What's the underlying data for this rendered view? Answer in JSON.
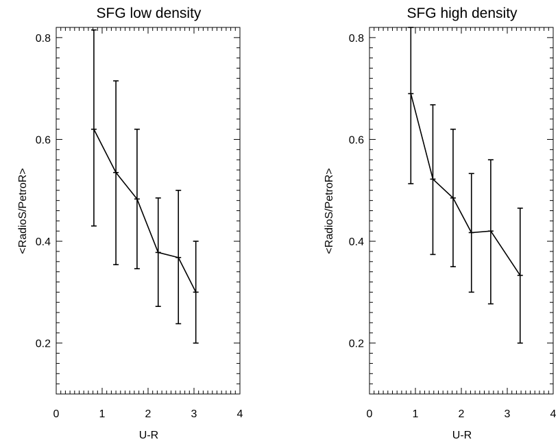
{
  "chart_data": [
    {
      "type": "line",
      "title": "SFG low density",
      "xlabel": "U-R",
      "ylabel": "<RadioS/PetroR>",
      "xlim": [
        0,
        4
      ],
      "ylim": [
        0.1,
        0.82
      ],
      "xticks": [
        "0",
        "1",
        "2",
        "3",
        "4"
      ],
      "yticks": [
        "0.2",
        "0.4",
        "0.6",
        "0.8"
      ],
      "error_bars": true,
      "series": [
        {
          "x": [
            0.82,
            1.3,
            1.76,
            2.22,
            2.66,
            3.04
          ],
          "y": [
            0.62,
            0.535,
            0.483,
            0.378,
            0.368,
            0.3
          ],
          "y_low": [
            0.43,
            0.354,
            0.346,
            0.272,
            0.238,
            0.2
          ],
          "y_high": [
            0.815,
            0.715,
            0.62,
            0.485,
            0.5,
            0.4
          ]
        }
      ]
    },
    {
      "type": "line",
      "title": "SFG high density",
      "xlabel": "U-R",
      "ylabel": "<RadioS/PetroR>",
      "xlim": [
        0,
        4
      ],
      "ylim": [
        0.1,
        0.82
      ],
      "xticks": [
        "0",
        "1",
        "2",
        "3",
        "4"
      ],
      "yticks": [
        "0.2",
        "0.4",
        "0.6",
        "0.8"
      ],
      "error_bars": true,
      "series": [
        {
          "x": [
            0.9,
            1.38,
            1.82,
            2.22,
            2.64,
            3.28
          ],
          "y": [
            0.69,
            0.522,
            0.485,
            0.417,
            0.42,
            0.333
          ],
          "y_low": [
            0.513,
            0.374,
            0.35,
            0.3,
            0.277,
            0.2
          ],
          "y_high": [
            0.82,
            0.668,
            0.62,
            0.533,
            0.56,
            0.465
          ]
        }
      ]
    }
  ]
}
